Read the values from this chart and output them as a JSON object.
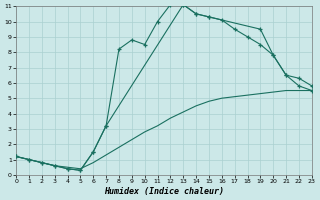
{
  "xlabel": "Humidex (Indice chaleur)",
  "bg_color": "#cce8e8",
  "grid_color": "#aad0d0",
  "line_color": "#1a7060",
  "xlim": [
    0,
    23
  ],
  "ylim": [
    0,
    11
  ],
  "curve1_x": [
    0,
    1,
    2,
    3,
    4,
    5,
    6,
    7,
    8,
    9,
    10,
    11,
    12,
    13,
    14,
    15,
    16,
    17,
    18,
    19,
    20,
    21,
    22,
    23
  ],
  "curve1_y": [
    1.2,
    1.0,
    0.8,
    0.6,
    0.4,
    0.3,
    1.5,
    3.2,
    8.2,
    8.8,
    8.5,
    10.0,
    11.1,
    11.1,
    10.5,
    10.3,
    10.1,
    9.5,
    9.0,
    8.5,
    7.8,
    6.5,
    5.8,
    5.5
  ],
  "curve2_x": [
    0,
    1,
    2,
    3,
    4,
    5,
    6,
    7,
    13,
    14,
    15,
    19,
    20,
    21,
    22,
    23
  ],
  "curve2_y": [
    1.2,
    1.0,
    0.8,
    0.6,
    0.4,
    0.3,
    1.5,
    3.2,
    11.1,
    10.5,
    10.3,
    9.5,
    7.8,
    6.5,
    6.3,
    5.8
  ],
  "curve3_x": [
    0,
    1,
    2,
    3,
    4,
    5,
    6,
    7,
    8,
    9,
    10,
    11,
    12,
    13,
    14,
    15,
    16,
    17,
    18,
    19,
    20,
    21,
    22,
    23
  ],
  "curve3_y": [
    1.2,
    1.0,
    0.8,
    0.6,
    0.5,
    0.4,
    0.8,
    1.3,
    1.8,
    2.3,
    2.8,
    3.2,
    3.7,
    4.1,
    4.5,
    4.8,
    5.0,
    5.1,
    5.2,
    5.3,
    5.4,
    5.5,
    5.5,
    5.5
  ]
}
